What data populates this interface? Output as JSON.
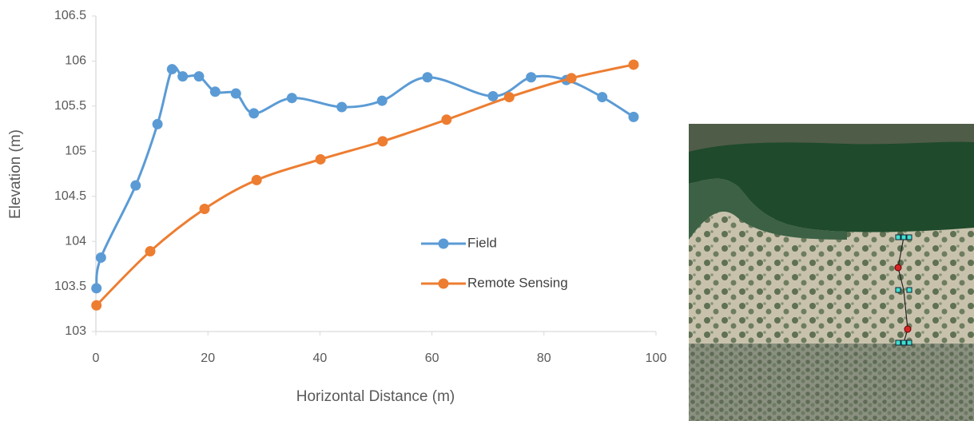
{
  "chart_data": {
    "type": "line",
    "x_label": "Horizontal Distance (m)",
    "y_label": "Elevation (m)",
    "xlim": [
      0,
      100
    ],
    "xticks": [
      0,
      20,
      40,
      60,
      80,
      100
    ],
    "ylim": [
      103,
      106.5
    ],
    "yticks": [
      103,
      103.5,
      104,
      104.5,
      105,
      105.5,
      106,
      106.5
    ],
    "grid": false,
    "smooth": true,
    "legend_position": "right",
    "series": [
      {
        "name": "Field",
        "color": "#5b9bd5",
        "x": [
          0.1,
          0.9,
          7.1,
          11.0,
          13.6,
          15.5,
          18.4,
          21.3,
          25.0,
          28.2,
          35.0,
          43.9,
          51.1,
          59.2,
          70.9,
          77.7,
          84.0,
          90.4,
          96.0
        ],
        "values": [
          103.48,
          103.82,
          104.62,
          105.3,
          105.91,
          105.83,
          105.83,
          105.66,
          105.64,
          105.42,
          105.59,
          105.49,
          105.56,
          105.82,
          105.61,
          105.82,
          105.79,
          105.6,
          105.38
        ]
      },
      {
        "name": "Remote Sensing",
        "color": "#ed7d31",
        "x": [
          0.1,
          9.7,
          19.4,
          28.7,
          40.1,
          51.2,
          62.6,
          73.8,
          84.9,
          96.0
        ],
        "values": [
          103.29,
          103.89,
          104.36,
          104.68,
          104.91,
          105.11,
          105.35,
          105.6,
          105.81,
          105.96
        ]
      }
    ]
  }
}
